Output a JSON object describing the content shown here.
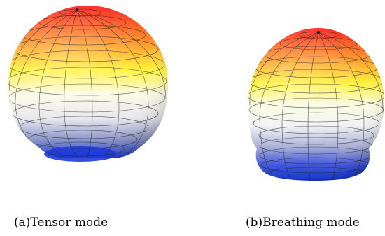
{
  "figure": {
    "panels": [
      {
        "id": "a",
        "caption": "(a)Tensor mode",
        "surface": {
          "shape": "tensor-deformed-sphere",
          "colormap": [
            "#0b2fd6",
            "#ffffff",
            "#fff23a",
            "#ff9a28",
            "#ff2020"
          ]
        }
      },
      {
        "id": "b",
        "caption": "(b)Breathing mode",
        "surface": {
          "shape": "breathing-deformed-sphere",
          "colormap": [
            "#0b2fd6",
            "#ffffff",
            "#fff23a",
            "#ff9a28",
            "#ff2020"
          ]
        }
      }
    ]
  }
}
